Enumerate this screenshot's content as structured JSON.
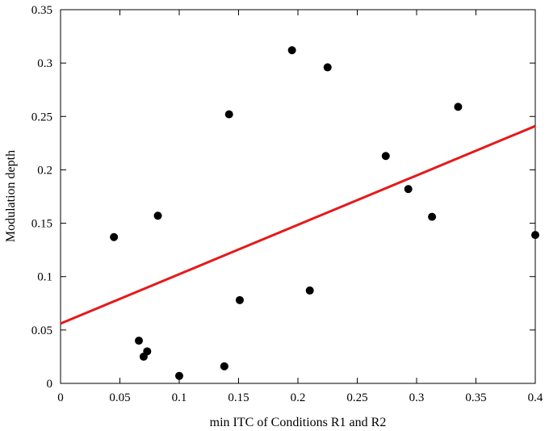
{
  "chart_data": {
    "type": "scatter",
    "title": "",
    "xlabel": "min ITC of Conditions R1 and R2",
    "ylabel": "Modulation depth",
    "xlim": [
      0,
      0.4
    ],
    "ylim": [
      0,
      0.35
    ],
    "xticks": [
      "0",
      "0.05",
      "0.1",
      "0.15",
      "0.2",
      "0.25",
      "0.3",
      "0.35",
      "0.4"
    ],
    "yticks": [
      "0",
      "0.05",
      "0.1",
      "0.15",
      "0.2",
      "0.25",
      "0.3",
      "0.35"
    ],
    "grid": false,
    "legend": "none",
    "series": [
      {
        "points": [
          {
            "x": 0.045,
            "y": 0.137
          },
          {
            "x": 0.066,
            "y": 0.04
          },
          {
            "x": 0.07,
            "y": 0.025
          },
          {
            "x": 0.073,
            "y": 0.03
          },
          {
            "x": 0.082,
            "y": 0.157
          },
          {
            "x": 0.1,
            "y": 0.007
          },
          {
            "x": 0.138,
            "y": 0.016
          },
          {
            "x": 0.142,
            "y": 0.252
          },
          {
            "x": 0.151,
            "y": 0.078
          },
          {
            "x": 0.195,
            "y": 0.312
          },
          {
            "x": 0.21,
            "y": 0.087
          },
          {
            "x": 0.225,
            "y": 0.296
          },
          {
            "x": 0.274,
            "y": 0.213
          },
          {
            "x": 0.293,
            "y": 0.182
          },
          {
            "x": 0.313,
            "y": 0.156
          },
          {
            "x": 0.335,
            "y": 0.259
          },
          {
            "x": 0.4,
            "y": 0.139
          }
        ]
      }
    ],
    "fit_line": {
      "x": [
        0,
        0.4
      ],
      "y": [
        0.056,
        0.241
      ]
    },
    "colors": {
      "points": "#000000",
      "fit_line": "#e41a1c",
      "axes": "#000000"
    }
  }
}
